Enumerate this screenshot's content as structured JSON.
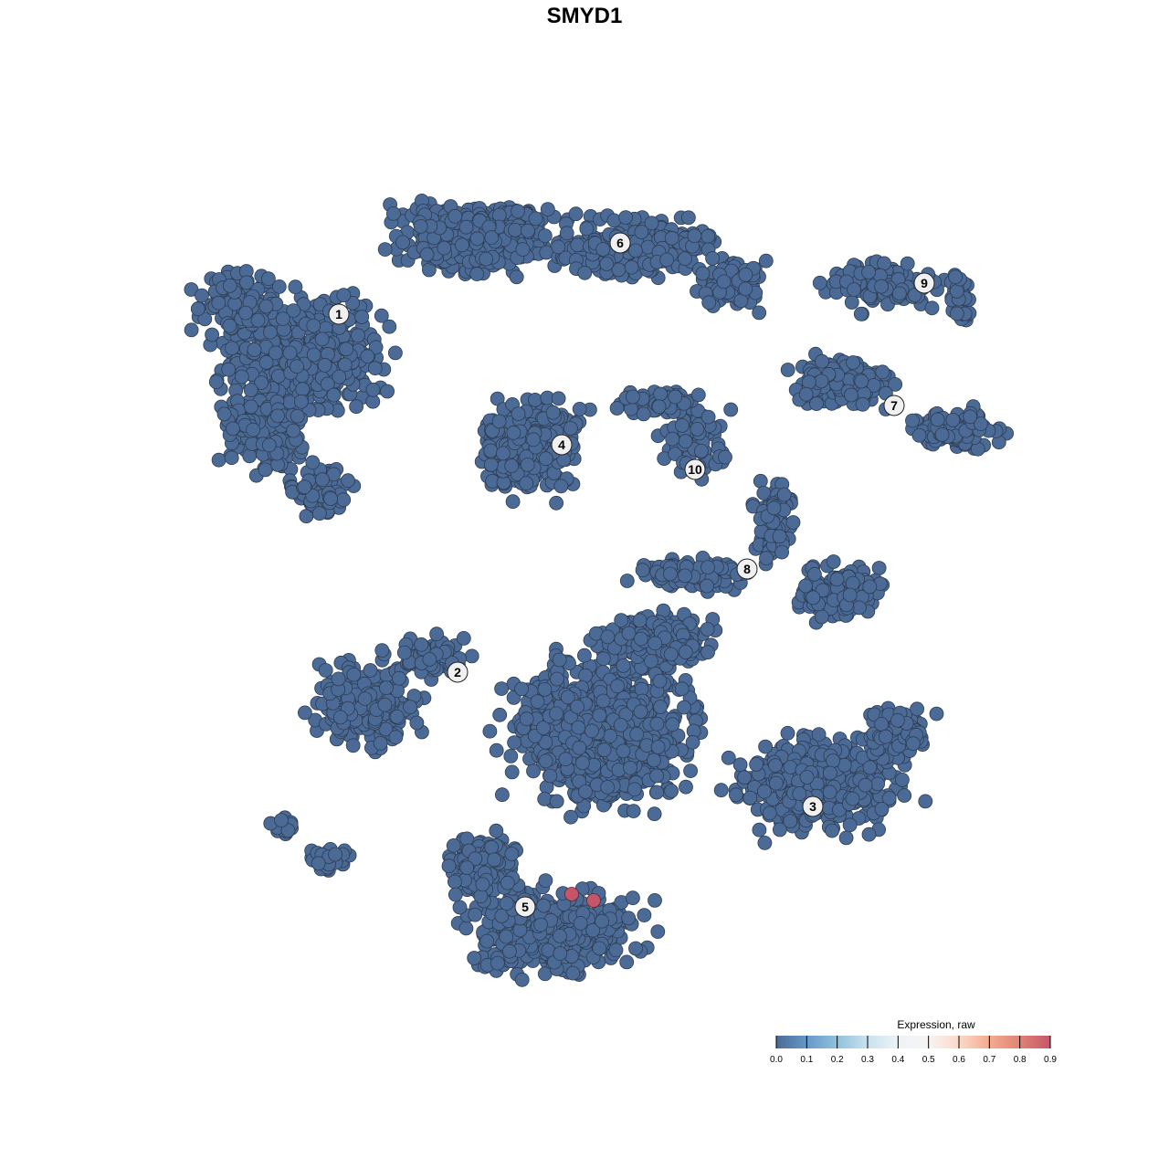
{
  "chart_data": {
    "type": "scatter",
    "title": "SMYD1",
    "xlabel": "",
    "ylabel": "",
    "grid": false,
    "point_color_default_expression": 0.0,
    "clusters": [
      {
        "label": "1",
        "x": -26.9,
        "y": 29.6
      },
      {
        "label": "2",
        "x": -13.9,
        "y": -9.6
      },
      {
        "label": "3",
        "x": 25.0,
        "y": -24.3
      },
      {
        "label": "4",
        "x": -2.5,
        "y": 15.3
      },
      {
        "label": "5",
        "x": -6.5,
        "y": -35.3
      },
      {
        "label": "6",
        "x": 3.9,
        "y": 37.4
      },
      {
        "label": "7",
        "x": 33.9,
        "y": 19.6
      },
      {
        "label": "8",
        "x": 17.8,
        "y": 1.7
      },
      {
        "label": "9",
        "x": 37.2,
        "y": 33.0
      },
      {
        "label": "10",
        "x": 12.1,
        "y": 12.6
      }
    ],
    "expressing_points": [
      {
        "x": -1.4,
        "y": -33.9,
        "expression": 0.9
      },
      {
        "x": 1.0,
        "y": -34.6,
        "expression": 0.85
      }
    ],
    "legend": {
      "title": "Expression, raw",
      "placement": "bottom-right",
      "ticks": [
        "0.0",
        "0.1",
        "0.2",
        "0.3",
        "0.4",
        "0.5",
        "0.6",
        "0.7",
        "0.8",
        "0.9"
      ],
      "range": [
        0,
        0.9
      ],
      "colors": [
        "#4b6a96",
        "#6698c8",
        "#8fc2dd",
        "#c9e2ee",
        "#eef3f7",
        "#f7f4f2",
        "#fbd9c9",
        "#f4ab8f",
        "#e08375",
        "#c4566a"
      ]
    }
  }
}
